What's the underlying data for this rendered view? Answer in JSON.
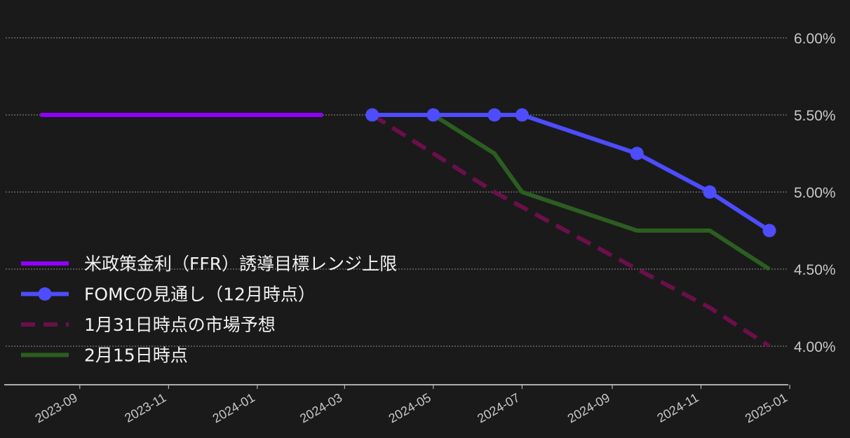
{
  "chart_data": {
    "type": "line",
    "title": "",
    "xlabel": "",
    "ylabel": "",
    "xlim": [
      "2023-07-12",
      "2024-12-31"
    ],
    "ylim": [
      3.75,
      6.2
    ],
    "y_ticks": [
      {
        "value": 4.0,
        "label": "4.00%"
      },
      {
        "value": 4.5,
        "label": "4.50%"
      },
      {
        "value": 5.0,
        "label": "5.00%"
      },
      {
        "value": 5.5,
        "label": "5.50%"
      },
      {
        "value": 6.0,
        "label": "6.00%"
      }
    ],
    "x_ticks": [
      {
        "value": "2023-09-01",
        "label": "2023-09"
      },
      {
        "value": "2023-11-01",
        "label": "2023-11"
      },
      {
        "value": "2024-01-01",
        "label": "2024-01"
      },
      {
        "value": "2024-03-01",
        "label": "2024-03"
      },
      {
        "value": "2024-05-01",
        "label": "2024-05"
      },
      {
        "value": "2024-07-01",
        "label": "2024-07"
      },
      {
        "value": "2024-09-01",
        "label": "2024-09"
      },
      {
        "value": "2024-11-01",
        "label": "2024-11"
      },
      {
        "value": "2025-01-01",
        "label": "2025-01"
      }
    ],
    "grid": "horizontal-dashed",
    "legend_position": "lower-left",
    "y_axis_position": "right",
    "series": [
      {
        "name": "米政策金利（FFR）誘導目標レンジ上限",
        "color": "#8f00ff",
        "style": "solid",
        "markers": false,
        "points": [
          {
            "x": "2023-08-05",
            "y": 5.5
          },
          {
            "x": "2024-02-15",
            "y": 5.5
          }
        ]
      },
      {
        "name": "1月31日時点の市場予想",
        "color": "#6b0f4a",
        "style": "dashed",
        "markers": false,
        "points": [
          {
            "x": "2024-03-20",
            "y": 5.5
          },
          {
            "x": "2024-05-01",
            "y": 5.25
          },
          {
            "x": "2024-06-12",
            "y": 5.0
          },
          {
            "x": "2024-07-31",
            "y": 4.75
          },
          {
            "x": "2024-09-18",
            "y": 4.5
          },
          {
            "x": "2024-11-07",
            "y": 4.25
          },
          {
            "x": "2024-12-18",
            "y": 4.0
          }
        ]
      },
      {
        "name": "2月15日時点",
        "color": "#2b5e20",
        "style": "solid",
        "markers": false,
        "points": [
          {
            "x": "2024-03-20",
            "y": 5.5
          },
          {
            "x": "2024-05-01",
            "y": 5.5
          },
          {
            "x": "2024-06-12",
            "y": 5.25
          },
          {
            "x": "2024-07-01",
            "y": 5.0
          },
          {
            "x": "2024-09-18",
            "y": 4.75
          },
          {
            "x": "2024-11-07",
            "y": 4.75
          },
          {
            "x": "2024-12-18",
            "y": 4.5
          }
        ]
      },
      {
        "name": "FOMCの見通し（12月時点）",
        "color": "#4d4dff",
        "style": "solid",
        "markers": true,
        "points": [
          {
            "x": "2024-03-20",
            "y": 5.5
          },
          {
            "x": "2024-05-01",
            "y": 5.5
          },
          {
            "x": "2024-06-12",
            "y": 5.5
          },
          {
            "x": "2024-07-01",
            "y": 5.5
          },
          {
            "x": "2024-09-18",
            "y": 5.25
          },
          {
            "x": "2024-11-07",
            "y": 5.0
          },
          {
            "x": "2024-12-18",
            "y": 4.75
          }
        ]
      }
    ]
  },
  "legend": [
    {
      "series": "米政策金利（FFR）誘導目標レンジ上限",
      "color": "#8f00ff",
      "style": "solid",
      "marker": false
    },
    {
      "series": "FOMCの見通し（12月時点）",
      "color": "#4d4dff",
      "style": "solid",
      "marker": true
    },
    {
      "series": "1月31日時点の市場予想",
      "color": "#6b0f4a",
      "style": "dashed",
      "marker": false
    },
    {
      "series": "2月15日時点",
      "color": "#2b5e20",
      "style": "solid",
      "marker": false
    }
  ]
}
